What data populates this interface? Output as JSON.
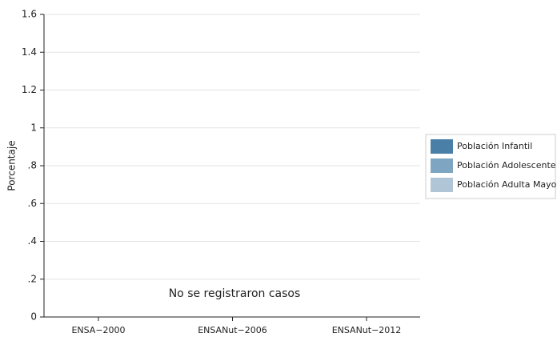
{
  "chart_data": {
    "type": "bar",
    "y_label": "Porcentaje",
    "annotation": "No se registraron casos",
    "categories": [
      "ENSA−2000",
      "ENSANut−2006",
      "ENSANut−2012"
    ],
    "series": [
      {
        "name": "Población Infantil",
        "color": "#4a7fa8",
        "values": [
          null,
          null,
          null
        ]
      },
      {
        "name": "Población Adolescente",
        "color": "#7ea6c2",
        "values": [
          null,
          null,
          null
        ]
      },
      {
        "name": "Población Adulta Mayor",
        "color": "#b0c6d6",
        "values": [
          null,
          null,
          null
        ]
      }
    ],
    "ylim": [
      0,
      1.6
    ],
    "yticks": [
      0,
      {
        "value": 0.2,
        "label": ".2"
      },
      {
        "value": 0.4,
        "label": ".4"
      },
      {
        "value": 0.6,
        "label": ".6"
      },
      {
        "value": 0.8,
        "label": ".8"
      },
      1,
      1.2,
      1.4,
      1.6
    ],
    "grid": true,
    "legend": "right"
  }
}
